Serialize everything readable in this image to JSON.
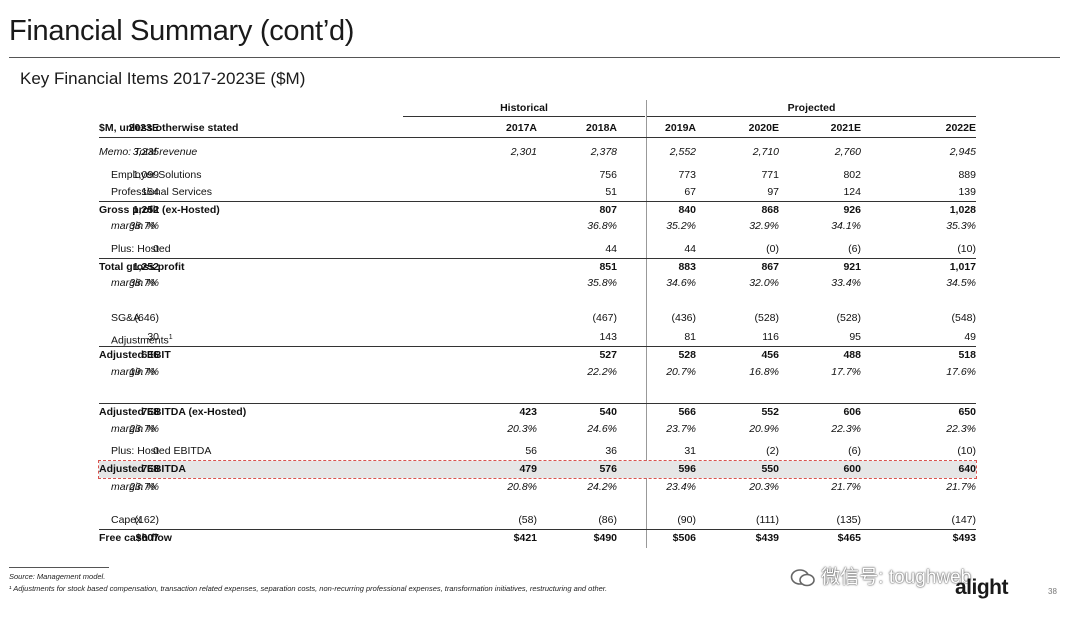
{
  "title": "Financial Summary (cont’d)",
  "subtitle": "Key Financial Items 2017-2023E ($M)",
  "table": {
    "group_historical": "Historical",
    "group_projected": "Projected",
    "header_label": "$M, unless otherwise stated",
    "years": [
      "2017A",
      "2018A",
      "2019A",
      "2020E",
      "2021E",
      "2022E",
      "2023E"
    ],
    "rows": [
      {
        "label": "Memo: Total revenue",
        "values": [
          "2,301",
          "2,378",
          "2,552",
          "2,710",
          "2,760",
          "2,945",
          "3,235"
        ]
      },
      {
        "label": "Employer Solutions",
        "values": [
          "",
          "756",
          "773",
          "771",
          "802",
          "889",
          "1,099"
        ]
      },
      {
        "label": "Professional Services",
        "values": [
          "",
          "51",
          "67",
          "97",
          "124",
          "139",
          "154"
        ]
      },
      {
        "label": "Gross profit (ex-Hosted)",
        "values": [
          "",
          "807",
          "840",
          "868",
          "926",
          "1,028",
          "1,252"
        ]
      },
      {
        "label": "margin %",
        "values": [
          "",
          "36.8%",
          "35.2%",
          "32.9%",
          "34.1%",
          "35.3%",
          "38.7%"
        ]
      },
      {
        "label": "Plus: Hosted",
        "values": [
          "",
          "44",
          "44",
          "(0)",
          "(6)",
          "(10)",
          "0"
        ]
      },
      {
        "label": "Total gross profit",
        "values": [
          "",
          "851",
          "883",
          "867",
          "921",
          "1,017",
          "1,252"
        ]
      },
      {
        "label": "margin %",
        "values": [
          "",
          "35.8%",
          "34.6%",
          "32.0%",
          "33.4%",
          "34.5%",
          "38.7%"
        ]
      },
      {
        "label": "SG&A",
        "values": [
          "",
          "(467)",
          "(436)",
          "(528)",
          "(528)",
          "(548)",
          "(646)"
        ]
      },
      {
        "label": "Adjustments",
        "values": [
          "",
          "143",
          "81",
          "116",
          "95",
          "49",
          "30"
        ]
      },
      {
        "label": "Adjusted EBIT",
        "values": [
          "",
          "527",
          "528",
          "456",
          "488",
          "518",
          "636"
        ]
      },
      {
        "label": "margin %",
        "values": [
          "",
          "22.2%",
          "20.7%",
          "16.8%",
          "17.7%",
          "17.6%",
          "19.7%"
        ]
      },
      {
        "label": "Adjusted EBITDA (ex-Hosted)",
        "values": [
          "423",
          "540",
          "566",
          "552",
          "606",
          "650",
          "768"
        ]
      },
      {
        "label": "margin %",
        "values": [
          "20.3%",
          "24.6%",
          "23.7%",
          "20.9%",
          "22.3%",
          "22.3%",
          "23.7%"
        ]
      },
      {
        "label": "Plus: Hosted EBITDA",
        "values": [
          "56",
          "36",
          "31",
          "(2)",
          "(6)",
          "(10)",
          "0"
        ]
      },
      {
        "label": "Adjusted EBITDA",
        "values": [
          "479",
          "576",
          "596",
          "550",
          "600",
          "640",
          "768"
        ]
      },
      {
        "label": "margin %",
        "values": [
          "20.8%",
          "24.2%",
          "23.4%",
          "20.3%",
          "21.7%",
          "21.7%",
          "23.7%"
        ]
      },
      {
        "label": "Capex",
        "values": [
          "(58)",
          "(86)",
          "(90)",
          "(111)",
          "(135)",
          "(147)",
          "(162)"
        ]
      },
      {
        "label": "Free cash flow",
        "values": [
          "$421",
          "$490",
          "$506",
          "$439",
          "$465",
          "$493",
          "$607"
        ]
      }
    ],
    "footnote_mark": "1"
  },
  "source": "Source: Management model.",
  "footnote": "¹ Adjustments for stock based compensation, transaction related expenses, separation costs, non-recurring professional expenses, transformation initiatives, restructuring and other.",
  "logo_text": "alight",
  "page_number": "38",
  "watermark": "微信号: toughweb"
}
